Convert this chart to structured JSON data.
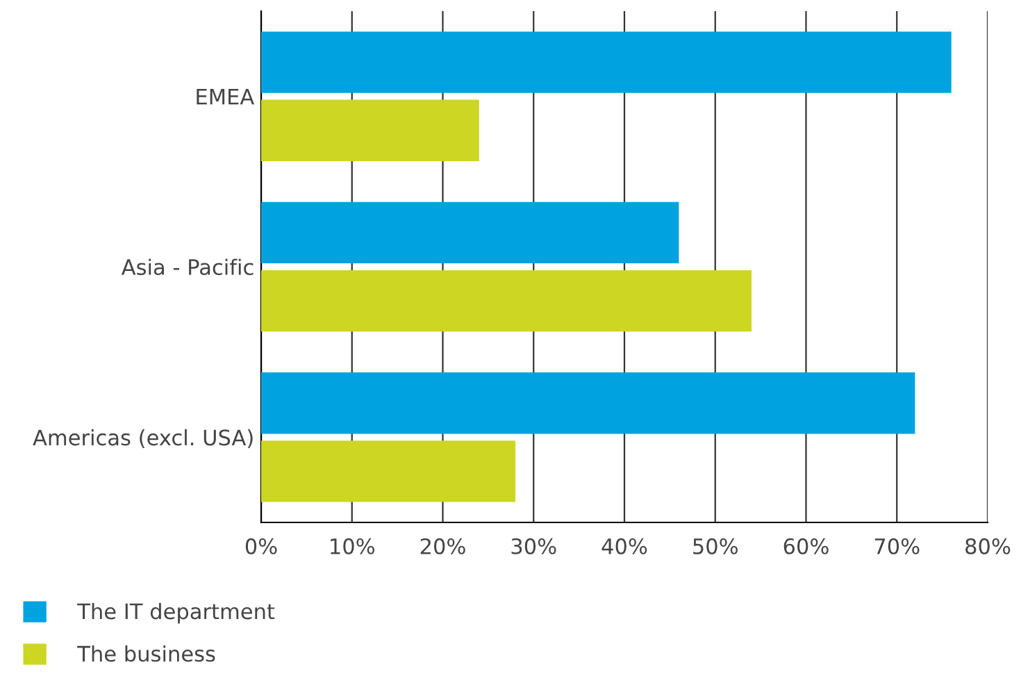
{
  "chart_data": {
    "type": "bar",
    "orientation": "horizontal",
    "categories": [
      "EMEA",
      "Asia - Pacific",
      "Americas (excl. USA)"
    ],
    "series": [
      {
        "name": "The IT department",
        "color": "#00a3e0",
        "values": [
          76,
          46,
          72
        ]
      },
      {
        "name": "The business",
        "color": "#cdd623",
        "values": [
          24,
          54,
          28
        ]
      }
    ],
    "xlim": [
      0,
      80
    ],
    "xticks": [
      {
        "value": 0,
        "label": "0%"
      },
      {
        "value": 10,
        "label": "10%"
      },
      {
        "value": 20,
        "label": "20%"
      },
      {
        "value": 30,
        "label": "30%"
      },
      {
        "value": 40,
        "label": "40%"
      },
      {
        "value": 50,
        "label": "50%"
      },
      {
        "value": 60,
        "label": "60%"
      },
      {
        "value": 70,
        "label": "70%"
      },
      {
        "value": 80,
        "label": "80%"
      }
    ],
    "grid": "x",
    "legend": "bottom left"
  }
}
